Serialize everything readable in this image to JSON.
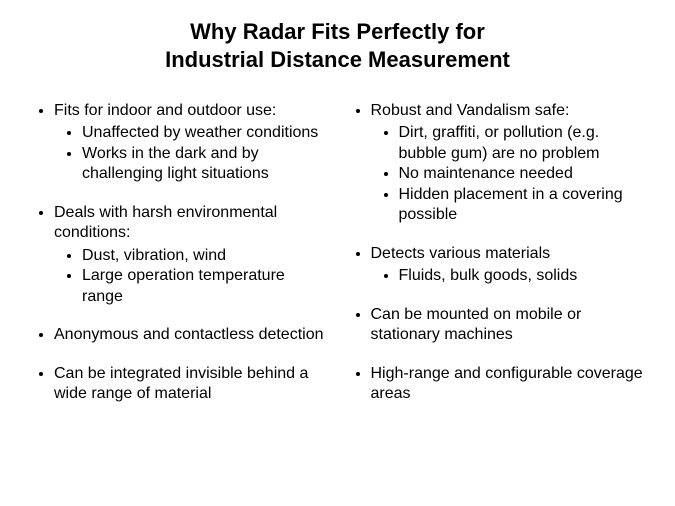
{
  "title_line1": "Why Radar Fits Perfectly for",
  "title_line2": "Industrial Distance Measurement",
  "left": {
    "b0": {
      "text": "Fits for indoor and outdoor use:",
      "s0": "Unaffected by weather conditions",
      "s1": "Works in the dark and by challenging light situations"
    },
    "b1": {
      "text": "Deals with harsh environmental conditions:",
      "s0": "Dust, vibration, wind",
      "s1": "Large operation temperature range"
    },
    "b2": {
      "text": "Anonymous and contactless detection"
    },
    "b3": {
      "text": "Can be integrated invisible behind a wide range of material"
    }
  },
  "right": {
    "b0": {
      "text": "Robust and Vandalism safe:",
      "s0": "Dirt, graffiti, or pollution (e.g. bubble gum) are no problem",
      "s1": "No maintenance needed",
      "s2": "Hidden placement in a covering possible"
    },
    "b1": {
      "text": "Detects various materials",
      "s0": "Fluids, bulk goods, solids"
    },
    "b2": {
      "text": "Can be mounted on mobile or stationary machines"
    },
    "b3": {
      "text": "High-range and configurable coverage areas"
    }
  },
  "style": {
    "type": "document-slide",
    "background_color": "#ffffff",
    "text_color": "#000000",
    "title_fontsize_pt": 16,
    "body_fontsize_pt": 12,
    "font_family": "Arial",
    "columns": 2,
    "bullet_marker": "disc"
  }
}
